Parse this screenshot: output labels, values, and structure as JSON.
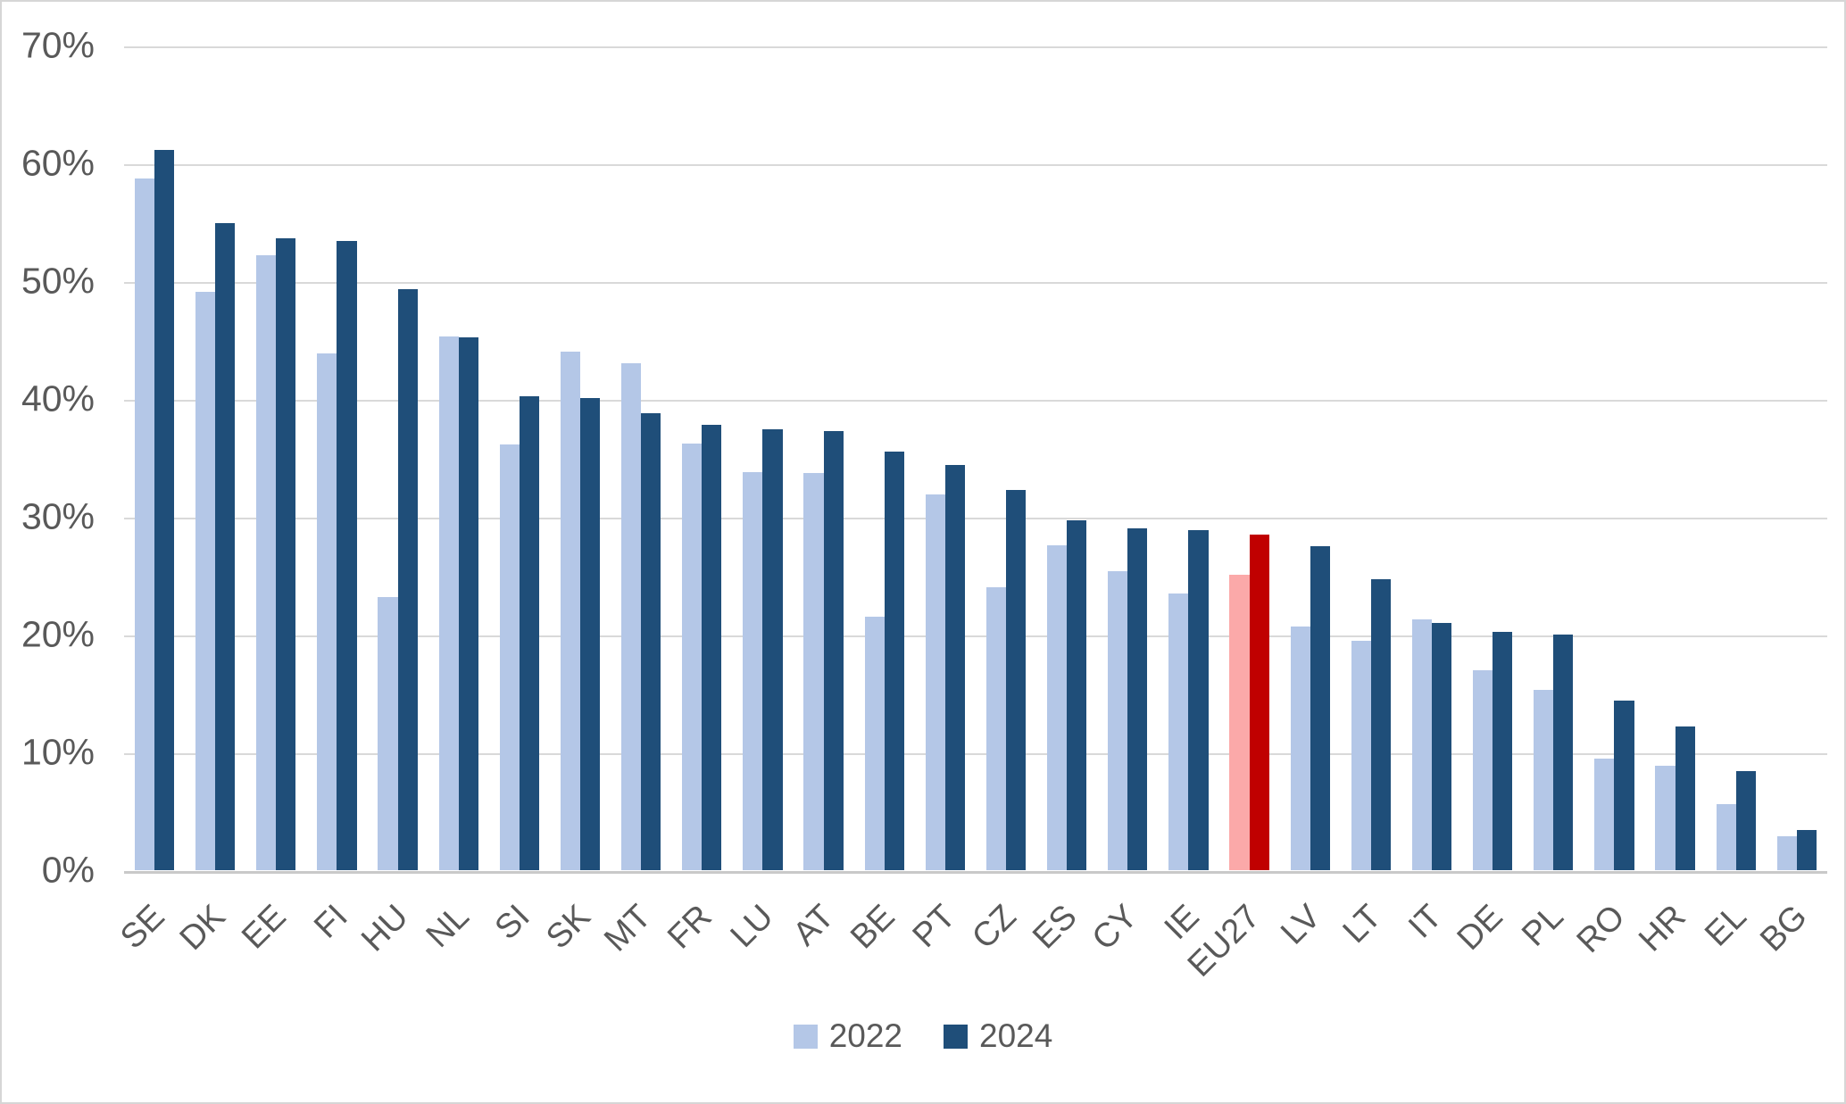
{
  "chart_data": {
    "type": "bar",
    "title": "",
    "categories": [
      "SE",
      "DK",
      "EE",
      "FI",
      "HU",
      "NL",
      "SI",
      "SK",
      "MT",
      "FR",
      "LU",
      "AT",
      "BE",
      "PT",
      "CZ",
      "ES",
      "CY",
      "IE",
      "EU27",
      "LV",
      "LT",
      "IT",
      "DE",
      "PL",
      "RO",
      "HR",
      "EL",
      "BG"
    ],
    "series": [
      {
        "name": "2022",
        "color": "#B4C7E7",
        "highlight_color": "#FBA9A9",
        "values": [
          58.7,
          49.1,
          52.2,
          43.9,
          23.2,
          45.3,
          36.1,
          44.0,
          43.0,
          36.2,
          33.8,
          33.7,
          21.5,
          31.9,
          24.0,
          27.6,
          25.4,
          23.5,
          25.1,
          20.7,
          19.5,
          21.3,
          17.0,
          15.3,
          9.5,
          8.9,
          5.6,
          2.9
        ]
      },
      {
        "name": "2024",
        "color": "#1F4E79",
        "highlight_color": "#C00000",
        "values": [
          61.1,
          54.9,
          53.6,
          53.4,
          49.3,
          45.2,
          40.2,
          40.1,
          38.8,
          37.8,
          37.4,
          37.3,
          35.5,
          34.4,
          32.3,
          29.7,
          29.0,
          28.9,
          28.5,
          27.5,
          24.7,
          21.0,
          20.2,
          20.0,
          14.4,
          12.2,
          8.4,
          3.4
        ]
      }
    ],
    "highlight_category": "EU27",
    "ylim": [
      0,
      70
    ],
    "yticks": [
      {
        "value": 70,
        "label": "70%"
      },
      {
        "value": 60,
        "label": "60%"
      },
      {
        "value": 50,
        "label": "50%"
      },
      {
        "value": 40,
        "label": "40%"
      },
      {
        "value": 30,
        "label": "30%"
      },
      {
        "value": 20,
        "label": "20%"
      },
      {
        "value": 10,
        "label": "10%"
      },
      {
        "value": 0,
        "label": "0%"
      }
    ],
    "grid": true,
    "legend_position": "bottom",
    "xlabel": "",
    "ylabel": ""
  },
  "colors": {
    "gridline": "#d9d9d9",
    "axis_line": "#c9c9c9",
    "text": "#595959",
    "background": "#ffffff",
    "border": "#d6d6d6"
  }
}
